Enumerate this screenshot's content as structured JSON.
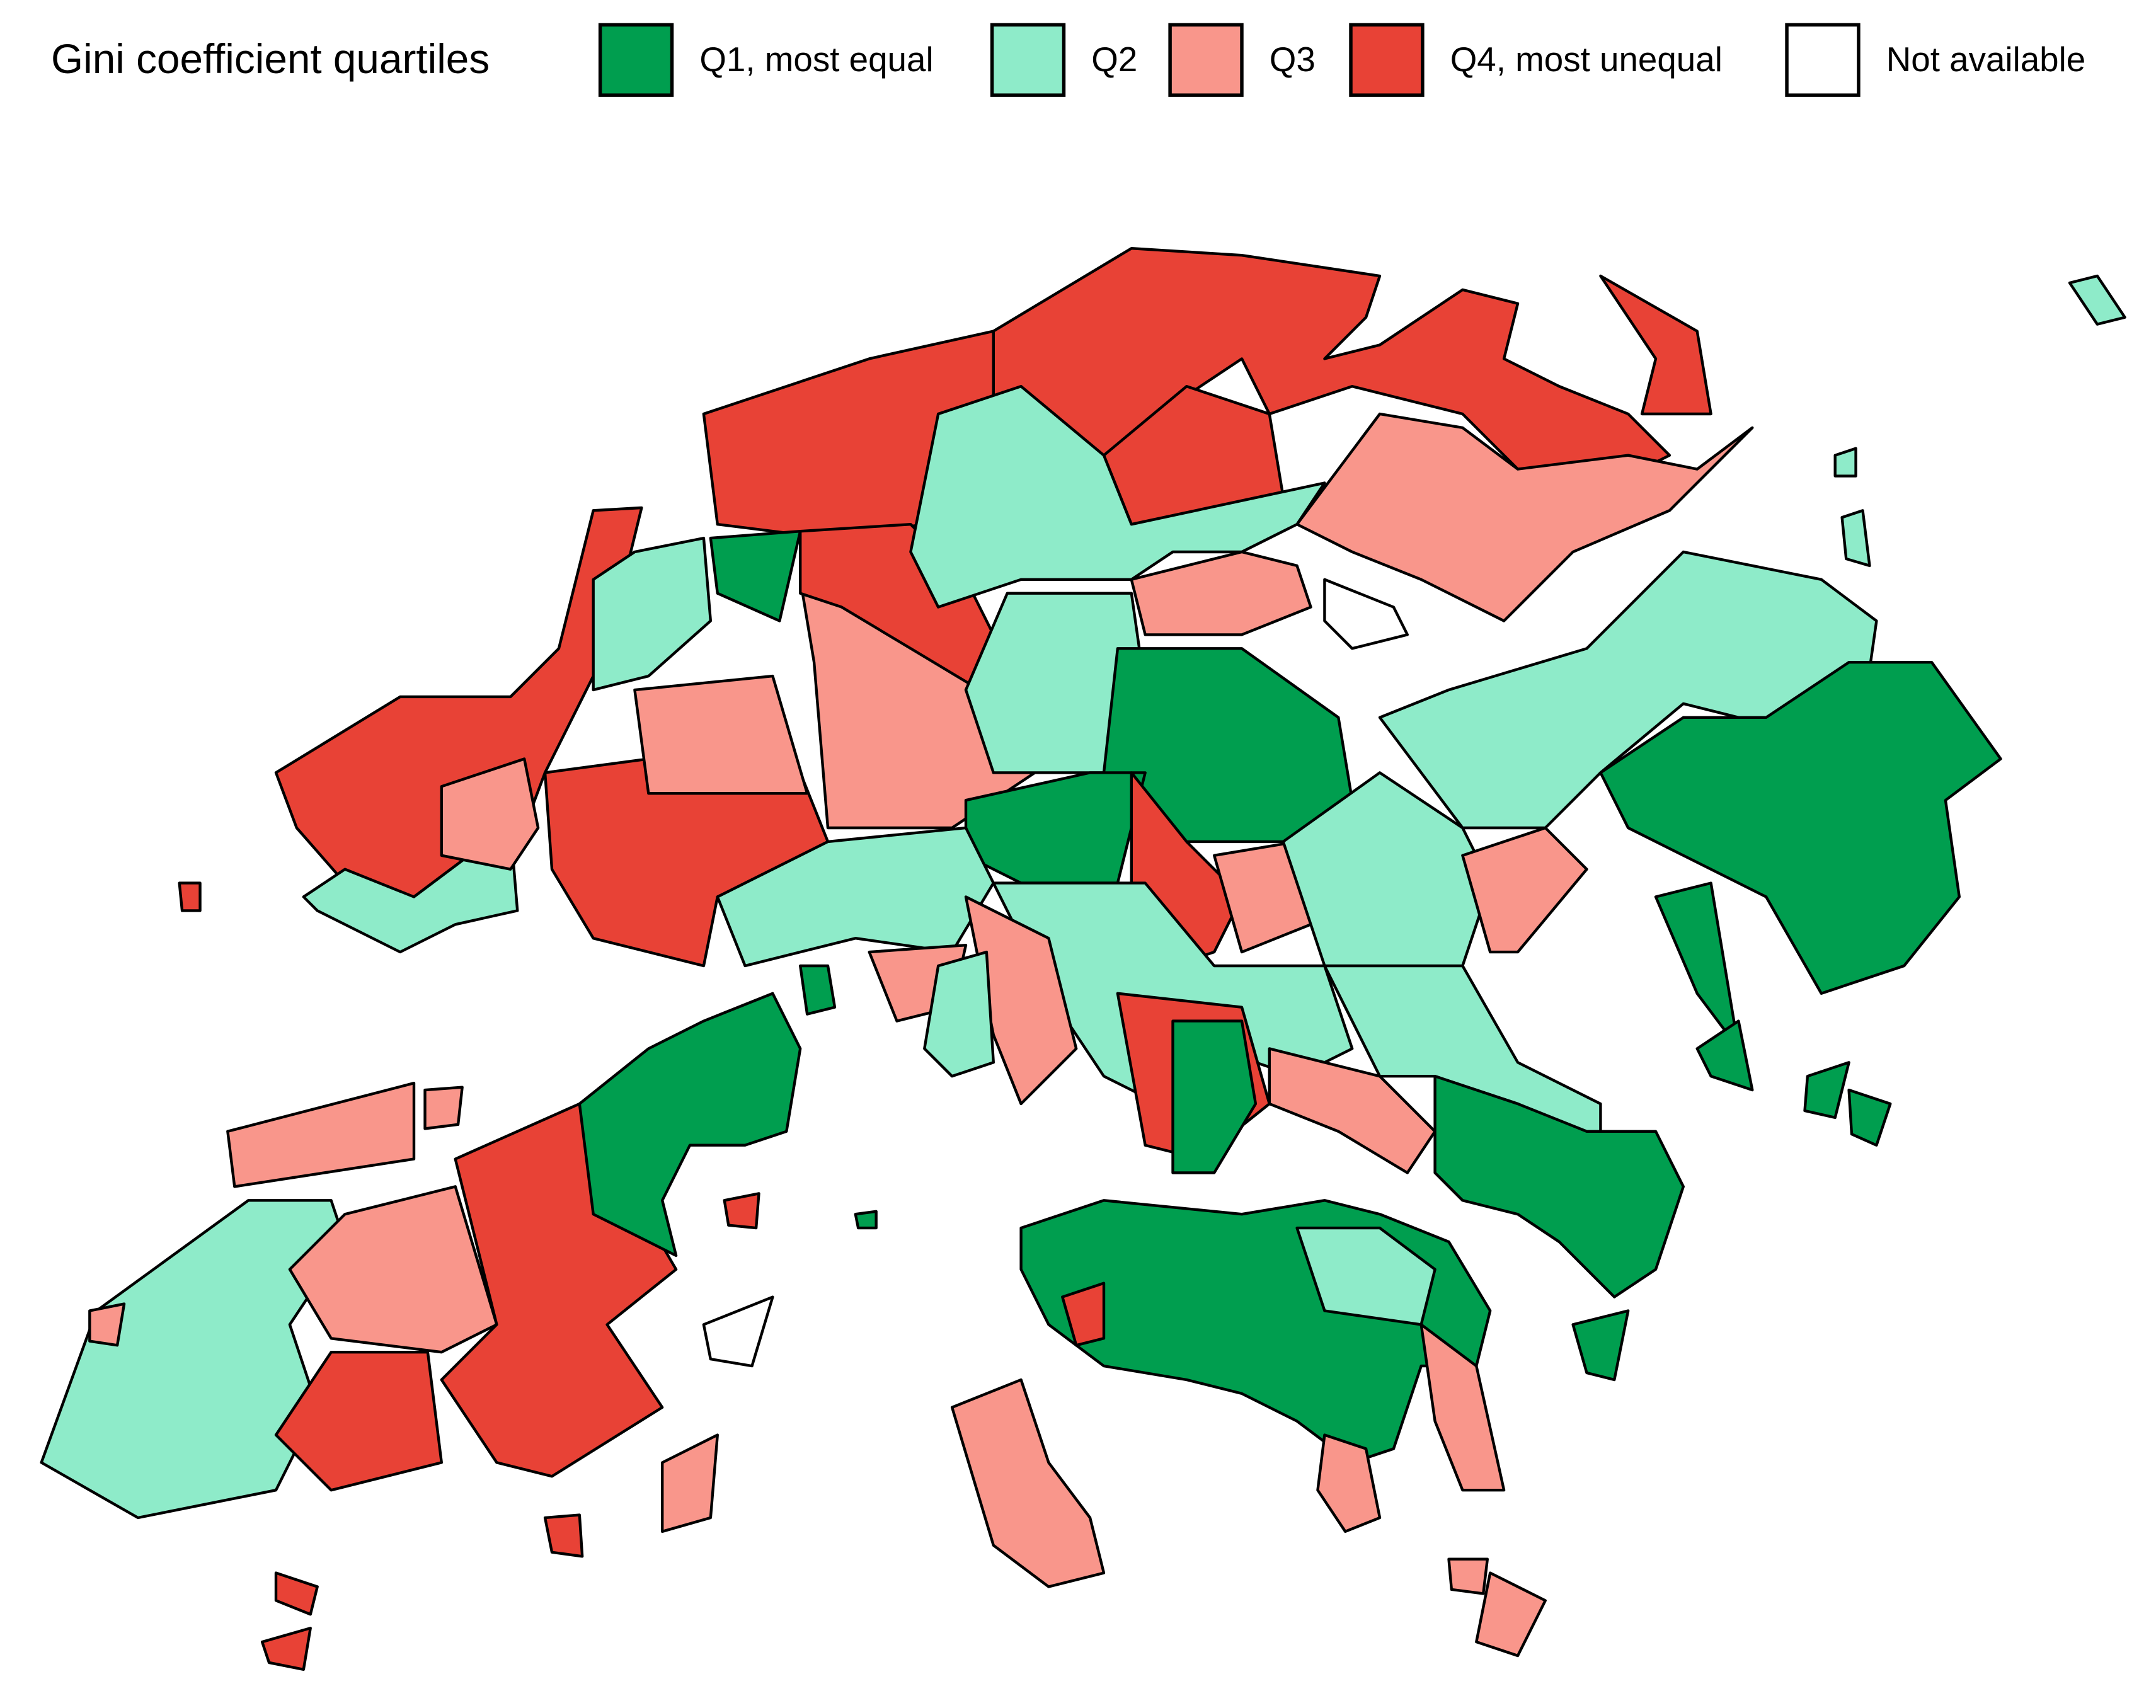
{
  "legend": {
    "title": "Gini coefficient quartiles",
    "items": [
      {
        "label": "Q1, most equal",
        "color": "#009e4f"
      },
      {
        "label": "Q2",
        "color": "#8eebc9"
      },
      {
        "label": "Q3",
        "color": "#f9968b"
      },
      {
        "label": "Q4, most unequal",
        "color": "#e84236"
      },
      {
        "label": "Not available",
        "color": "#ffffff"
      }
    ]
  }
}
